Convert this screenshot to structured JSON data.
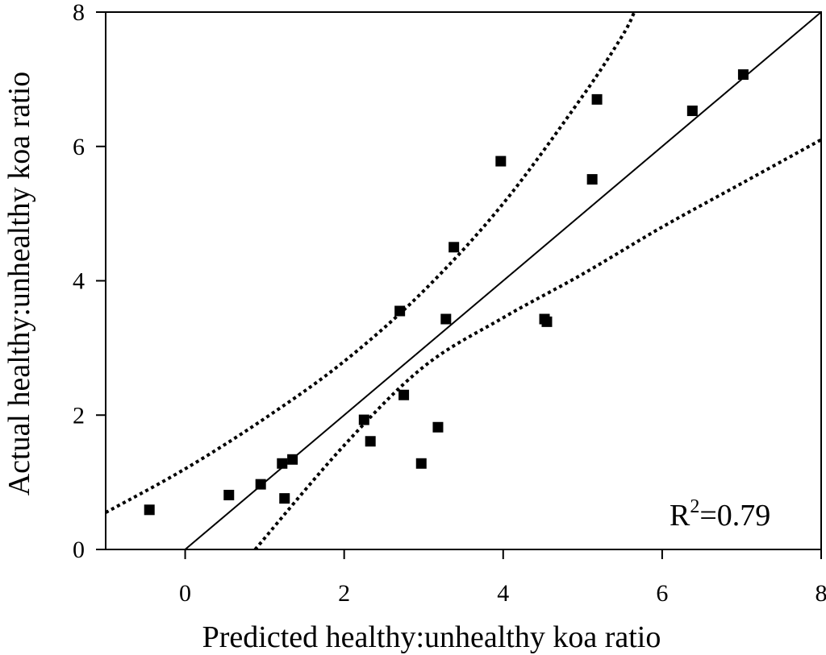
{
  "chart_data": {
    "type": "scatter",
    "title": "",
    "xlabel": "Predicted healthy:unhealthy koa ratio",
    "ylabel": "Actual healthy:unhealthy koa ratio",
    "xlim": [
      -1,
      8
    ],
    "ylim": [
      0,
      8
    ],
    "xticks": [
      "0",
      "2",
      "4",
      "6",
      "8"
    ],
    "yticks": [
      "0",
      "2",
      "4",
      "6",
      "8"
    ],
    "grid": false,
    "annotation": {
      "base": "R",
      "sup": "2",
      "rest": "=0.79"
    },
    "series": [
      {
        "name": "observations",
        "marker": "square",
        "points": [
          [
            -0.45,
            0.59
          ],
          [
            0.55,
            0.81
          ],
          [
            0.95,
            0.97
          ],
          [
            1.22,
            1.28
          ],
          [
            1.35,
            1.34
          ],
          [
            1.25,
            0.76
          ],
          [
            2.25,
            1.93
          ],
          [
            2.33,
            1.61
          ],
          [
            2.7,
            3.55
          ],
          [
            2.75,
            2.3
          ],
          [
            2.97,
            1.28
          ],
          [
            3.18,
            1.82
          ],
          [
            3.28,
            3.43
          ],
          [
            3.38,
            4.5
          ],
          [
            3.97,
            5.78
          ],
          [
            4.52,
            3.43
          ],
          [
            4.55,
            3.39
          ],
          [
            5.12,
            5.51
          ],
          [
            5.18,
            6.7
          ],
          [
            6.38,
            6.53
          ],
          [
            7.02,
            7.07
          ]
        ]
      }
    ],
    "fit_line": {
      "name": "1:1 line",
      "style": "solid",
      "points": [
        [
          0,
          0
        ],
        [
          8,
          8
        ]
      ]
    },
    "confidence_bands": [
      {
        "name": "upper",
        "style": "dotted",
        "points": [
          [
            -1,
            0.55
          ],
          [
            0,
            1.2
          ],
          [
            1,
            1.95
          ],
          [
            2,
            2.8
          ],
          [
            3,
            3.85
          ],
          [
            4,
            5.15
          ],
          [
            5,
            6.75
          ],
          [
            5.5,
            7.65
          ],
          [
            5.65,
            8
          ]
        ]
      },
      {
        "name": "lower",
        "style": "dotted",
        "points": [
          [
            0.88,
            0
          ],
          [
            2,
            1.55
          ],
          [
            3,
            2.72
          ],
          [
            4,
            3.45
          ],
          [
            5,
            4.1
          ],
          [
            6,
            4.8
          ],
          [
            7,
            5.45
          ],
          [
            8,
            6.1
          ]
        ]
      }
    ]
  }
}
